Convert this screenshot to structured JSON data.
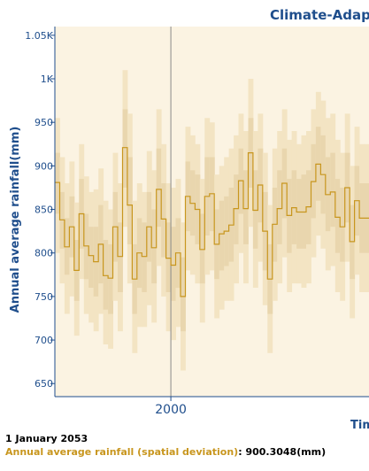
{
  "colors": {
    "plot_bg": "#fbf3e2",
    "band": "#f3e4c3",
    "band_inner": "#e9d6ae",
    "line": "#c8961e",
    "axis": "#1f4e8c",
    "grid": "#8a8a8a"
  },
  "chart_data": {
    "type": "area",
    "title": "Climate-Adapt",
    "ylabel": "Annual average rainfall(mm)",
    "xlabel": "Tim",
    "ylim": [
      635,
      1060
    ],
    "xlim": [
      1976,
      2041
    ],
    "y_ticks": [
      {
        "value": 1050,
        "label": "1.05K"
      },
      {
        "value": 1000,
        "label": "1K"
      },
      {
        "value": 950,
        "label": "950"
      },
      {
        "value": 900,
        "label": "900"
      },
      {
        "value": 850,
        "label": "850"
      },
      {
        "value": 800,
        "label": "800"
      },
      {
        "value": 750,
        "label": "750"
      },
      {
        "value": 700,
        "label": "700"
      },
      {
        "value": 650,
        "label": "650"
      }
    ],
    "x_ticks": [
      {
        "value": 2000,
        "label": "2000"
      }
    ],
    "grid": true,
    "series": [
      {
        "x": [
          1976,
          1977,
          1978,
          1979,
          1980,
          1981,
          1982,
          1983,
          1984,
          1985,
          1986,
          1987,
          1988,
          1989,
          1990,
          1991,
          1992,
          1993,
          1994,
          1995,
          1996,
          1997,
          1998,
          1999,
          2000,
          2001,
          2002,
          2003,
          2004,
          2005,
          2006,
          2007,
          2008,
          2009,
          2010,
          2011,
          2012,
          2013,
          2014,
          2015,
          2016,
          2017,
          2018,
          2019,
          2020,
          2021,
          2022,
          2023,
          2024,
          2025,
          2026,
          2027,
          2028,
          2029,
          2030,
          2031,
          2032,
          2033,
          2034,
          2035,
          2036,
          2037,
          2038,
          2039,
          2040
        ],
        "mean": [
          881,
          838,
          807,
          830,
          780,
          845,
          808,
          797,
          790,
          810,
          774,
          771,
          830,
          796,
          921,
          855,
          770,
          800,
          796,
          830,
          806,
          873,
          839,
          794,
          786,
          800,
          750,
          865,
          857,
          850,
          804,
          865,
          868,
          810,
          822,
          825,
          832,
          851,
          883,
          851,
          915,
          849,
          878,
          825,
          770,
          833,
          851,
          880,
          843,
          852,
          847,
          847,
          853,
          882,
          902,
          890,
          867,
          870,
          841,
          830,
          875,
          813,
          860,
          840,
          840
        ],
        "upper": [
          955,
          910,
          880,
          905,
          858,
          925,
          888,
          870,
          873,
          897,
          860,
          850,
          915,
          880,
          1010,
          960,
          860,
          880,
          870,
          917,
          895,
          965,
          925,
          880,
          875,
          885,
          835,
          945,
          935,
          925,
          885,
          955,
          950,
          890,
          900,
          910,
          920,
          935,
          960,
          940,
          1000,
          940,
          960,
          915,
          855,
          920,
          940,
          965,
          930,
          940,
          925,
          935,
          940,
          965,
          985,
          975,
          955,
          960,
          930,
          915,
          960,
          900,
          945,
          925,
          925
        ],
        "lower": [
          800,
          765,
          730,
          750,
          705,
          770,
          730,
          720,
          710,
          730,
          695,
          690,
          745,
          710,
          830,
          765,
          685,
          715,
          715,
          740,
          720,
          785,
          750,
          710,
          700,
          715,
          665,
          780,
          775,
          765,
          720,
          775,
          780,
          725,
          735,
          745,
          745,
          765,
          800,
          765,
          830,
          760,
          790,
          740,
          685,
          745,
          765,
          795,
          755,
          765,
          765,
          760,
          765,
          795,
          820,
          805,
          780,
          785,
          755,
          745,
          790,
          725,
          775,
          755,
          755
        ],
        "upper_inner": [
          915,
          870,
          840,
          865,
          815,
          885,
          845,
          830,
          830,
          855,
          815,
          810,
          870,
          835,
          965,
          910,
          810,
          840,
          835,
          870,
          850,
          920,
          880,
          835,
          830,
          840,
          795,
          905,
          895,
          890,
          845,
          910,
          910,
          850,
          860,
          865,
          875,
          890,
          920,
          895,
          955,
          895,
          920,
          870,
          810,
          875,
          895,
          920,
          885,
          895,
          885,
          890,
          895,
          925,
          945,
          935,
          910,
          915,
          885,
          875,
          915,
          855,
          900,
          880,
          880
        ],
        "lower_inner": [
          845,
          805,
          775,
          795,
          745,
          805,
          770,
          760,
          750,
          765,
          735,
          730,
          790,
          755,
          875,
          810,
          730,
          760,
          755,
          790,
          765,
          830,
          795,
          755,
          745,
          760,
          710,
          825,
          820,
          810,
          765,
          820,
          825,
          770,
          780,
          785,
          790,
          810,
          845,
          810,
          875,
          805,
          835,
          780,
          730,
          790,
          810,
          840,
          800,
          810,
          805,
          805,
          810,
          840,
          860,
          845,
          825,
          830,
          800,
          790,
          835,
          770,
          820,
          800,
          800
        ]
      }
    ]
  },
  "readout": {
    "date": "1 January 2053",
    "label": "Annual average rainfall (spatial deviation)",
    "value": "900.3048(mm)"
  }
}
